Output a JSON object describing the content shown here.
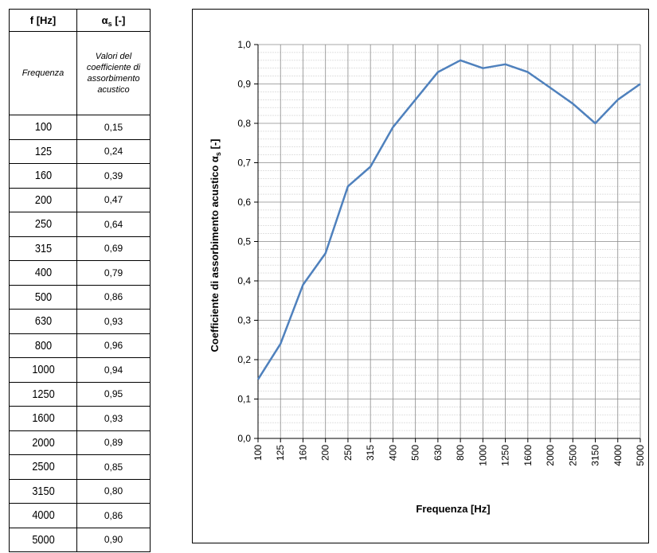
{
  "table": {
    "header": {
      "col1": "f [Hz]",
      "col2_symbol": "α",
      "col2_sub": "s",
      "col2_unit": "[-]"
    },
    "description": {
      "col1": "Frequenza",
      "col2": "Valori del coefficiente di assorbimento acustico"
    },
    "rows": [
      [
        "100",
        "0,15"
      ],
      [
        "125",
        "0,24"
      ],
      [
        "160",
        "0,39"
      ],
      [
        "200",
        "0,47"
      ],
      [
        "250",
        "0,64"
      ],
      [
        "315",
        "0,69"
      ],
      [
        "400",
        "0,79"
      ],
      [
        "500",
        "0,86"
      ],
      [
        "630",
        "0,93"
      ],
      [
        "800",
        "0,96"
      ],
      [
        "1000",
        "0,94"
      ],
      [
        "1250",
        "0,95"
      ],
      [
        "1600",
        "0,93"
      ],
      [
        "2000",
        "0,89"
      ],
      [
        "2500",
        "0,85"
      ],
      [
        "3150",
        "0,80"
      ],
      [
        "4000",
        "0,86"
      ],
      [
        "5000",
        "0,90"
      ]
    ]
  },
  "chart_data": {
    "type": "line",
    "categories": [
      "100",
      "125",
      "160",
      "200",
      "250",
      "315",
      "400",
      "500",
      "630",
      "800",
      "1000",
      "1250",
      "1600",
      "2000",
      "2500",
      "3150",
      "4000",
      "5000"
    ],
    "series": [
      {
        "values": [
          0.15,
          0.24,
          0.39,
          0.47,
          0.64,
          0.69,
          0.79,
          0.86,
          0.93,
          0.96,
          0.94,
          0.95,
          0.93,
          0.89,
          0.85,
          0.8,
          0.86,
          0.9
        ]
      }
    ],
    "xlabel": "Frequenza [Hz]",
    "ylabel_main": "Coefficiente di assorbimento acustico α",
    "ylabel_sub": "s",
    "ylabel_unit": " [-]",
    "ylim": [
      0,
      1.0
    ],
    "yticks": [
      "0,0",
      "0,1",
      "0,2",
      "0,3",
      "0,4",
      "0,5",
      "0,6",
      "0,7",
      "0,8",
      "0,9",
      "1,0"
    ],
    "grid": true,
    "line_color": "#4f81bd"
  }
}
